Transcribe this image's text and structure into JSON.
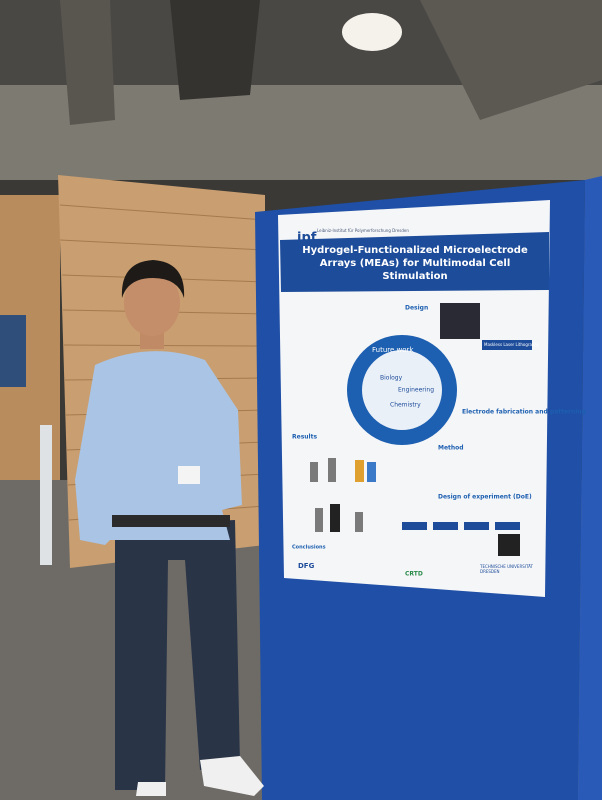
{
  "poster": {
    "logo": "ipf",
    "institute": "Leibniz-Institut für Polymerforschung Dresden",
    "title": "Hydrogel-Functionalized Microelectrode Arrays (MEAs) for Multimodal Cell Stimulation",
    "sections": [
      "Design",
      "Electrode fabrication and patterning",
      "Method",
      "Results",
      "Design of experiment (DoE)",
      "Conclusions"
    ],
    "circle_labels": [
      "Future work",
      "Biology",
      "Engineering",
      "Chemistry"
    ],
    "tag": "Maskless Laser Lithography",
    "footer_logos": [
      "DFG",
      "CRTD",
      "TECHNISCHE UNIVERSITÄT DRESDEN"
    ]
  }
}
